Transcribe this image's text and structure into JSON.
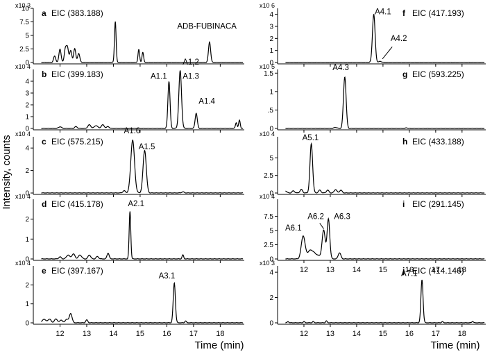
{
  "ylabel": "Intensity, counts",
  "xlabel": "Time (min)",
  "chart_data": [
    {
      "type": "line",
      "letter": "a",
      "eic": "EIC (383.188)",
      "scale": "x10 3",
      "xlim": [
        11,
        18.9
      ],
      "ylim": [
        0,
        10
      ],
      "yticks": [
        0,
        2.5,
        5,
        7.5,
        10
      ],
      "yticklabels": [
        "0",
        "2.5",
        "5",
        "7.5",
        "10"
      ],
      "xticks": [],
      "xticklabels": [],
      "peaks": [
        [
          11.8,
          1.2,
          0.04
        ],
        [
          12.0,
          2.5,
          0.04
        ],
        [
          12.2,
          2.5,
          0.04
        ],
        [
          12.28,
          2.6,
          0.04
        ],
        [
          12.4,
          2.2,
          0.04
        ],
        [
          12.55,
          2.6,
          0.04
        ],
        [
          12.7,
          1.7,
          0.04
        ],
        [
          14.07,
          7.6,
          0.03
        ],
        [
          14.95,
          2.4,
          0.03
        ],
        [
          15.1,
          1.9,
          0.03
        ],
        [
          17.6,
          3.8,
          0.04
        ]
      ],
      "noise": [],
      "labels": [
        {
          "text": "ADB-FUBINACA",
          "x": 17.5,
          "y": 6.2
        }
      ],
      "arrows": []
    },
    {
      "type": "line",
      "letter": "b",
      "eic": "EIC (399.183)",
      "scale": "x10 4",
      "xlim": [
        11,
        18.9
      ],
      "ylim": [
        0,
        5
      ],
      "yticks": [
        0,
        1,
        2,
        3,
        4
      ],
      "yticklabels": [
        "0",
        "1",
        "2",
        "3",
        "4"
      ],
      "xticks": [],
      "xticklabels": [],
      "peaks": [
        [
          16.08,
          4.0,
          0.04
        ],
        [
          16.5,
          4.9,
          0.05
        ],
        [
          17.1,
          1.3,
          0.04
        ],
        [
          18.6,
          0.5,
          0.03
        ],
        [
          18.72,
          0.7,
          0.03
        ]
      ],
      "noise": [
        [
          12.0,
          0.15,
          0.05
        ],
        [
          12.6,
          0.15,
          0.05
        ],
        [
          13.1,
          0.3,
          0.06
        ],
        [
          13.35,
          0.25,
          0.06
        ],
        [
          13.6,
          0.3,
          0.06
        ],
        [
          13.8,
          0.15,
          0.05
        ]
      ],
      "labels": [
        {
          "text": "A1.1",
          "x": 15.7,
          "y": 4.2
        },
        {
          "text": "A1.2",
          "x": 16.9,
          "y": 5.4
        },
        {
          "text": "A1.3",
          "x": 16.9,
          "y": 4.2
        },
        {
          "text": "A1.4",
          "x": 17.5,
          "y": 2.1
        }
      ],
      "arrows": []
    },
    {
      "type": "line",
      "letter": "c",
      "eic": "EIC (575.215)",
      "scale": "x10 4",
      "xlim": [
        11,
        18.9
      ],
      "ylim": [
        0,
        5
      ],
      "yticks": [
        0,
        2,
        4
      ],
      "yticklabels": [
        "0",
        "2",
        "4"
      ],
      "xticks": [],
      "xticklabels": [],
      "peaks": [
        [
          14.72,
          4.7,
          0.07
        ],
        [
          15.17,
          3.8,
          0.06
        ]
      ],
      "noise": [
        [
          14.4,
          0.2,
          0.05
        ],
        [
          16.6,
          0.1,
          0.05
        ]
      ],
      "labels": [
        {
          "text": "A1.6",
          "x": 14.7,
          "y": 5.3
        },
        {
          "text": "A1.5",
          "x": 15.25,
          "y": 3.9
        }
      ],
      "arrows": []
    },
    {
      "type": "line",
      "letter": "d",
      "eic": "EIC (415.178)",
      "scale": "x10 4",
      "xlim": [
        11,
        18.9
      ],
      "ylim": [
        0,
        3
      ],
      "yticks": [
        0,
        1,
        2
      ],
      "yticklabels": [
        "0",
        "1",
        "2"
      ],
      "xticks": [],
      "xticklabels": [],
      "peaks": [
        [
          14.62,
          2.4,
          0.03
        ],
        [
          13.8,
          0.3,
          0.04
        ],
        [
          16.6,
          0.2,
          0.03
        ]
      ],
      "noise": [
        [
          12.0,
          0.1,
          0.05
        ],
        [
          12.3,
          0.2,
          0.06
        ],
        [
          12.5,
          0.25,
          0.06
        ],
        [
          12.75,
          0.2,
          0.06
        ],
        [
          13.1,
          0.2,
          0.05
        ],
        [
          13.4,
          0.12,
          0.05
        ]
      ],
      "labels": [
        {
          "text": "A2.1",
          "x": 14.85,
          "y": 2.65
        }
      ],
      "arrows": []
    },
    {
      "type": "line",
      "letter": "e",
      "eic": "EIC (397.167)",
      "scale": "x10 4",
      "xlim": [
        11,
        18.9
      ],
      "ylim": [
        0,
        3
      ],
      "yticks": [
        0,
        1,
        2
      ],
      "yticklabels": [
        "0",
        "1",
        "2"
      ],
      "xticks": [
        12,
        13,
        14,
        15,
        16,
        17,
        18
      ],
      "xticklabels": [
        "12",
        "13",
        "14",
        "15",
        "16",
        "17",
        "18"
      ],
      "peaks": [
        [
          16.28,
          2.1,
          0.04
        ],
        [
          12.4,
          0.5,
          0.05
        ],
        [
          13.0,
          0.15,
          0.04
        ],
        [
          16.7,
          0.1,
          0.03
        ]
      ],
      "noise": [
        [
          11.4,
          0.2,
          0.06
        ],
        [
          11.6,
          0.2,
          0.06
        ],
        [
          11.85,
          0.2,
          0.06
        ],
        [
          12.05,
          0.15,
          0.05
        ],
        [
          12.25,
          0.2,
          0.05
        ]
      ],
      "labels": [
        {
          "text": "A3.1",
          "x": 16.0,
          "y": 2.35
        }
      ],
      "arrows": []
    },
    {
      "type": "line",
      "letter": "f",
      "eic": "EIC (417.193)",
      "scale": "x10 6",
      "xlim": [
        11,
        18.9
      ],
      "ylim": [
        0,
        4.5
      ],
      "yticks": [
        0,
        1,
        2,
        3,
        4
      ],
      "yticklabels": [
        "0",
        "1",
        "2",
        "3",
        "4"
      ],
      "xticks": [],
      "xticklabels": [],
      "peaks": [
        [
          14.65,
          4.0,
          0.05
        ],
        [
          14.9,
          0.1,
          0.05
        ]
      ],
      "noise": [],
      "labels": [
        {
          "text": "A4.1",
          "x": 15.0,
          "y": 4.0
        },
        {
          "text": "A4.2",
          "x": 15.6,
          "y": 1.8
        }
      ],
      "arrows": [
        {
          "x1": 15.35,
          "y1": 1.3,
          "x2": 14.98,
          "y2": 0.3
        }
      ]
    },
    {
      "type": "line",
      "letter": "g",
      "eic": "EIC (593.225)",
      "scale": "x10 5",
      "xlim": [
        11,
        18.9
      ],
      "ylim": [
        0,
        1.6
      ],
      "yticks": [
        0,
        0.5,
        1,
        1.5
      ],
      "yticklabels": [
        "0",
        ".5",
        "1",
        "1.5"
      ],
      "xticks": [],
      "xticklabels": [],
      "peaks": [
        [
          13.55,
          1.4,
          0.05
        ],
        [
          15.9,
          0.02,
          0.03
        ]
      ],
      "noise": [
        [
          13.2,
          0.03,
          0.05
        ]
      ],
      "labels": [
        {
          "text": "A4.3",
          "x": 13.4,
          "y": 1.58
        }
      ],
      "arrows": []
    },
    {
      "type": "line",
      "letter": "h",
      "eic": "EIC (433.188)",
      "scale": "x10 4",
      "xlim": [
        11,
        18.9
      ],
      "ylim": [
        0,
        8
      ],
      "yticks": [
        0,
        2.5,
        5
      ],
      "yticklabels": [
        "0",
        "2.5",
        "5"
      ],
      "xticks": [],
      "xticklabels": [],
      "peaks": [
        [
          12.28,
          7.0,
          0.05
        ]
      ],
      "noise": [
        [
          11.3,
          0.3,
          0.05
        ],
        [
          11.6,
          0.3,
          0.05
        ],
        [
          11.9,
          0.5,
          0.05
        ],
        [
          12.6,
          0.4,
          0.05
        ],
        [
          12.9,
          0.4,
          0.05
        ],
        [
          13.2,
          0.5,
          0.05
        ],
        [
          13.4,
          0.4,
          0.05
        ]
      ],
      "labels": [
        {
          "text": "A5.1",
          "x": 12.25,
          "y": 7.5
        }
      ],
      "arrows": []
    },
    {
      "type": "line",
      "letter": "i",
      "eic": "EIC (291.145)",
      "scale": "x10 4",
      "xlim": [
        11,
        18.9
      ],
      "ylim": [
        0,
        10.5
      ],
      "yticks": [
        0,
        2.5,
        5,
        7.5
      ],
      "yticklabels": [
        "0",
        "2.5",
        "5",
        "7.5"
      ],
      "xticks": [
        12,
        13,
        14,
        15,
        16,
        17,
        18
      ],
      "xticklabels": [
        "12",
        "13",
        "14",
        "15",
        "16",
        "17",
        "18"
      ],
      "peaks": [
        [
          11.97,
          4.0,
          0.07
        ],
        [
          12.25,
          1.5,
          0.12
        ],
        [
          12.75,
          5.0,
          0.06
        ],
        [
          12.93,
          7.0,
          0.05
        ],
        [
          13.35,
          1.1,
          0.05
        ]
      ],
      "noise": [
        [
          12.5,
          0.6,
          0.12
        ]
      ],
      "labels": [
        {
          "text": "A6.1",
          "x": 11.6,
          "y": 5.0
        },
        {
          "text": "A6.2",
          "x": 12.45,
          "y": 7.0
        },
        {
          "text": "A6.3",
          "x": 13.45,
          "y": 7.0
        }
      ],
      "arrows": [
        {
          "x1": 12.6,
          "y1": 6.3,
          "x2": 12.75,
          "y2": 5.3
        }
      ]
    },
    {
      "type": "line",
      "letter": "j",
      "eic": "EIC (414.146)",
      "scale": "x10 3",
      "xlim": [
        11,
        18.9
      ],
      "ylim": [
        0,
        4.5
      ],
      "yticks": [
        0,
        2,
        4
      ],
      "yticklabels": [
        "0",
        "2",
        "4"
      ],
      "xticks": [
        12,
        13,
        14,
        15,
        16,
        17,
        18
      ],
      "xticklabels": [
        "12",
        "13",
        "14",
        "15",
        "16",
        "17",
        "18"
      ],
      "peaks": [
        [
          16.48,
          3.4,
          0.04
        ],
        [
          11.4,
          0.1,
          0.03
        ],
        [
          12.0,
          0.1,
          0.03
        ],
        [
          12.35,
          0.1,
          0.03
        ],
        [
          12.85,
          0.15,
          0.03
        ],
        [
          17.25,
          0.1,
          0.03
        ],
        [
          18.4,
          0.12,
          0.03
        ]
      ],
      "noise": [],
      "labels": [
        {
          "text": "A7.1",
          "x": 16.0,
          "y": 3.7
        }
      ],
      "arrows": []
    }
  ]
}
